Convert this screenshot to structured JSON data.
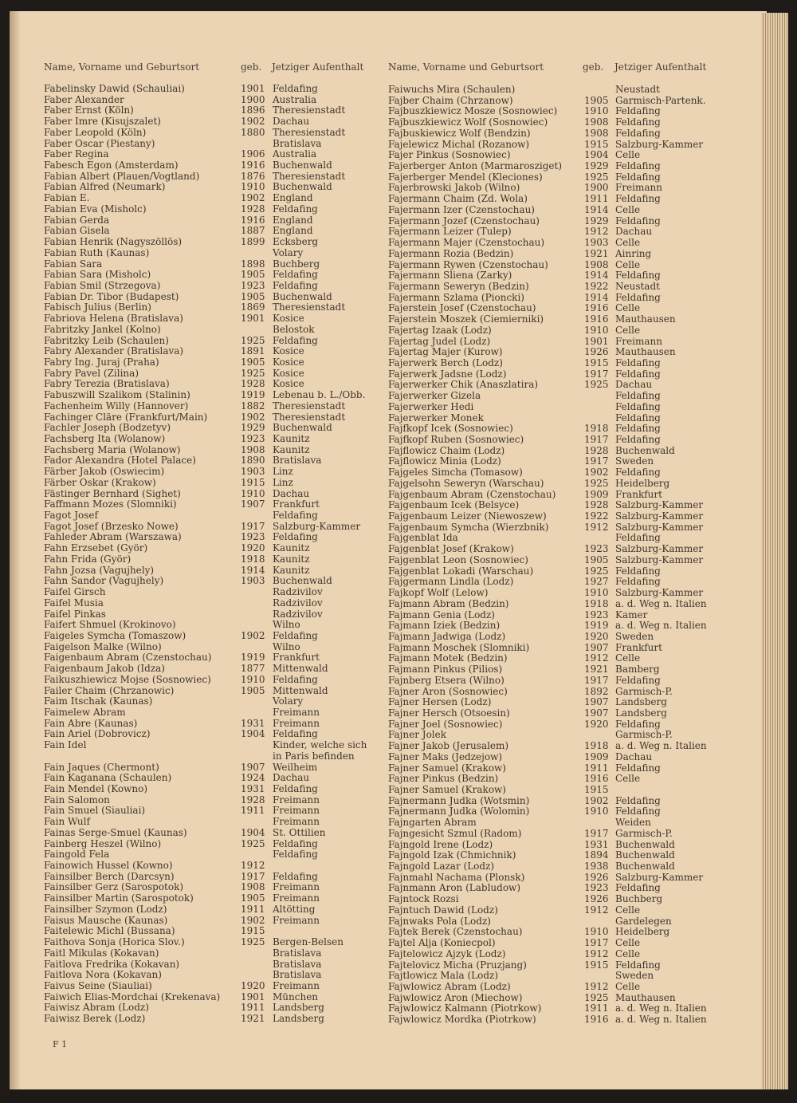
{
  "headers": {
    "name": "Name, Vorname und Geburtsort",
    "born": "geb.",
    "place": "Jetziger Aufenthalt"
  },
  "footer": "F 1",
  "left": [
    [
      "Fabelinsky Dawid (Schauliai)",
      "1901",
      "Feldafing"
    ],
    [
      "Faber Alexander",
      "1900",
      "Australia"
    ],
    [
      "Faber Ernst (Köln)",
      "1896",
      "Theresienstadt"
    ],
    [
      "Faber Imre (Kisujszalet)",
      "1902",
      "Dachau"
    ],
    [
      "Faber Leopold (Köln)",
      "1880",
      "Theresienstadt"
    ],
    [
      "Faber Oscar (Piestany)",
      "",
      "Bratislava"
    ],
    [
      "Faber Regina",
      "1906",
      "Australia"
    ],
    [
      "Fabesch Egon (Amsterdam)",
      "1916",
      "Buchenwald"
    ],
    [
      "Fabian Albert (Plauen/Vogtland)",
      "1876",
      "Theresienstadt"
    ],
    [
      "Fabian Alfred (Neumark)",
      "1910",
      "Buchenwald"
    ],
    [
      "Fabian E.",
      "1902",
      "England"
    ],
    [
      "Fabian Eva (Misholc)",
      "1928",
      "Feldafing"
    ],
    [
      "Fabian Gerda",
      "1916",
      "England"
    ],
    [
      "Fabian Gisela",
      "1887",
      "England"
    ],
    [
      "Fabian Henrik (Nagyszöllös)",
      "1899",
      "Ecksberg"
    ],
    [
      "Fabian Ruth (Kaunas)",
      "",
      "Volary"
    ],
    [
      "Fabian Sara",
      "1898",
      "Buchberg"
    ],
    [
      "Fabian Sara (Misholc)",
      "1905",
      "Feldafing"
    ],
    [
      "Fabian Smil (Strzegova)",
      "1923",
      "Feldafing"
    ],
    [
      "Fabian Dr. Tibor (Budapest)",
      "1905",
      "Buchenwald"
    ],
    [
      "Fabisch Julius (Berlin)",
      "1869",
      "Theresienstadt"
    ],
    [
      "Fabriova Helena (Bratislava)",
      "1901",
      "Kosice"
    ],
    [
      "Fabritzky Jankel (Kolno)",
      "",
      "Belostok"
    ],
    [
      "Fabritzky Leib (Schaulen)",
      "1925",
      "Feldafing"
    ],
    [
      "Fabry Alexander (Bratislava)",
      "1891",
      "Kosice"
    ],
    [
      "Fabry Ing. Juraj (Praha)",
      "1905",
      "Kosice"
    ],
    [
      "Fabry Pavel (Zilina)",
      "1925",
      "Kosice"
    ],
    [
      "Fabry Terezia (Bratislava)",
      "1928",
      "Kosice"
    ],
    [
      "Fabuszwill Szalikom (Stalinin)",
      "1919",
      "Lebenau b. L./Obb."
    ],
    [
      "Fachenheim Willy (Hannover)",
      "1882",
      "Theresienstadt"
    ],
    [
      "Fachinger Cläre (Frankfurt/Main)",
      "1902",
      "Theresienstadt"
    ],
    [
      "Fachler Joseph (Bodzetyv)",
      "1929",
      "Buchenwald"
    ],
    [
      "Fachsberg Ita (Wolanow)",
      "1923",
      "Kaunitz"
    ],
    [
      "Fachsberg Maria (Wolanow)",
      "1908",
      "Kaunitz"
    ],
    [
      "Fador Alexandra (Hotel Palace)",
      "1890",
      "Bratislava"
    ],
    [
      "Färber Jakob (Oswiecim)",
      "1903",
      "Linz"
    ],
    [
      "Färber Oskar (Krakow)",
      "1915",
      "Linz"
    ],
    [
      "Fästinger Bernhard (Sighet)",
      "1910",
      "Dachau"
    ],
    [
      "Faffmann Mozes (Slomniki)",
      "1907",
      "Frankfurt"
    ],
    [
      "Fagot Josef",
      "",
      "Feldafing"
    ],
    [
      "Fagot Josef (Brzesko Nowe)",
      "1917",
      "Salzburg-Kammer"
    ],
    [
      "Fahleder Abram (Warszawa)",
      "1923",
      "Feldafing"
    ],
    [
      "Fahn Erzsebet (Györ)",
      "1920",
      "Kaunitz"
    ],
    [
      "Fahn Frida (Györ)",
      "1918",
      "Kaunitz"
    ],
    [
      "Fahn Jozsa (Vagujhely)",
      "1914",
      "Kaunitz"
    ],
    [
      "Fahn Sandor (Vagujhely)",
      "1903",
      "Buchenwald"
    ],
    [
      "Faifel Girsch",
      "",
      "Radzivilov"
    ],
    [
      "Faifel Musia",
      "",
      "Radzivilov"
    ],
    [
      "Faifel Pinkas",
      "",
      "Radzivilov"
    ],
    [
      "Faifert Shmuel (Krokinovo)",
      "",
      "Wilno"
    ],
    [
      "Faigeles Symcha (Tomaszow)",
      "1902",
      "Feldafing"
    ],
    [
      "Faigelson Malke (Wilno)",
      "",
      "Wilno"
    ],
    [
      "Faigenbaum Abram (Czenstochau)",
      "1919",
      "Frankfurt"
    ],
    [
      "Faigenbaum Jakob (Idza)",
      "1877",
      "Mittenwald"
    ],
    [
      "Faikuszhiewicz Mojse (Sosnowiec)",
      "1910",
      "Feldafing"
    ],
    [
      "Failer Chaim (Chrzanowic)",
      "1905",
      "Mittenwald"
    ],
    [
      "Faim Itschak (Kaunas)",
      "",
      "Volary"
    ],
    [
      "Faimelew Abram",
      "",
      "Freimann"
    ],
    [
      "Fain Abre (Kaunas)",
      "1931",
      "Freimann"
    ],
    [
      "Fain Ariel (Dobrovicz)",
      "1904",
      "Feldafing"
    ],
    [
      "Fain Idel",
      "",
      "Kinder, welche sich"
    ],
    [
      "",
      "",
      "in Paris befinden"
    ],
    [
      "Fain Jaques (Chermont)",
      "1907",
      "Weilheim"
    ],
    [
      "Fain Kaganana (Schaulen)",
      "1924",
      "Dachau"
    ],
    [
      "Fain Mendel (Kowno)",
      "1931",
      "Feldafing"
    ],
    [
      "Fain Salomon",
      "1928",
      "Freimann"
    ],
    [
      "Fain Smuel (Siauliai)",
      "1911",
      "Freimann"
    ],
    [
      "Fain Wulf",
      "",
      "Freimann"
    ],
    [
      "Fainas Serge-Smuel (Kaunas)",
      "1904",
      "St. Ottilien"
    ],
    [
      "Fainberg Heszel (Wilno)",
      "1925",
      "Feldafing"
    ],
    [
      "Faingold Fela",
      "",
      "Feldafing"
    ],
    [
      "Fainowich Hussel (Kowno)",
      "1912",
      ""
    ],
    [
      "Fainsilber Berch (Darcsyn)",
      "1917",
      "Feldafing"
    ],
    [
      "Fainsilber Gerz (Sarospotok)",
      "1908",
      "Freimann"
    ],
    [
      "Fainsilber Martin (Sarospotok)",
      "1905",
      "Freimann"
    ],
    [
      "Fainsilber Szymon (Lodz)",
      "1911",
      "Altötting"
    ],
    [
      "Faisus Mausche (Kaunas)",
      "1902",
      "Freimann"
    ],
    [
      "Faitelewic Michl (Bussana)",
      "1915",
      ""
    ],
    [
      "Faithova Sonja (Horica Slov.)",
      "1925",
      "Bergen-Belsen"
    ],
    [
      "Faitl Mikulas (Kokavan)",
      "",
      "Bratislava"
    ],
    [
      "Faitlova Fredrika (Kokavan)",
      "",
      "Bratislava"
    ],
    [
      "Faitlova Nora (Kokavan)",
      "",
      "Bratislava"
    ],
    [
      "Faivus Seine (Siauliai)",
      "1920",
      "Freimann"
    ],
    [
      "Faiwich Elias-Mordchai (Krekenava)",
      "1901",
      "München"
    ],
    [
      "Faiwisz Abram (Lodz)",
      "1911",
      "Landsberg"
    ],
    [
      "Faiwisz Berek (Lodz)",
      "1921",
      "Landsberg"
    ]
  ],
  "right": [
    [
      "Faiwuchs Mira (Schaulen)",
      "",
      "Neustadt"
    ],
    [
      "Fajber Chaim (Chrzanow)",
      "1905",
      "Garmisch-Partenk."
    ],
    [
      "Fajbuszkiewicz Mosze (Sosnowiec)",
      "1910",
      "Feldafing"
    ],
    [
      "Fajbuszkiewicz Wolf (Sosnowiec)",
      "1908",
      "Feldafing"
    ],
    [
      "Fajbuskiewicz Wolf (Bendzin)",
      "1908",
      "Feldafing"
    ],
    [
      "Fajelewicz Michal (Rozanow)",
      "1915",
      "Salzburg-Kammer"
    ],
    [
      "Fajer Pinkus (Sosnowiec)",
      "1904",
      "Celle"
    ],
    [
      "Fajerberger Anton (Marmarosziget)",
      "1929",
      "Feldafing"
    ],
    [
      "Fajerberger Mendel (Kleciones)",
      "1925",
      "Feldafing"
    ],
    [
      "Fajerbrowski Jakob (Wilno)",
      "1900",
      "Freimann"
    ],
    [
      "Fajermann Chaim (Zd. Wola)",
      "1911",
      "Feldafing"
    ],
    [
      "Fajermann Izer (Czenstochau)",
      "1914",
      "Celle"
    ],
    [
      "Fajermann Jozef (Czenstochau)",
      "1929",
      "Feldafing"
    ],
    [
      "Fajermann Leizer (Tulep)",
      "1912",
      "Dachau"
    ],
    [
      "Fajermann Majer (Czenstochau)",
      "1903",
      "Celle"
    ],
    [
      "Fajermann Rozia (Bedzin)",
      "1921",
      "Ainring"
    ],
    [
      "Fajermann Rywen (Czenstochau)",
      "1908",
      "Celle"
    ],
    [
      "Fajermann Sliena (Zarky)",
      "1914",
      "Feldafing"
    ],
    [
      "Fajermann Seweryn (Bedzin)",
      "1922",
      "Neustadt"
    ],
    [
      "Fajermann Szlama (Pioncki)",
      "1914",
      "Feldafing"
    ],
    [
      "Fajerstein Josef (Czenstochau)",
      "1916",
      "Celle"
    ],
    [
      "Fajerstein Moszek (Ciemierniki)",
      "1916",
      "Mauthausen"
    ],
    [
      "Fajertag Izaak (Lodz)",
      "1910",
      "Celle"
    ],
    [
      "Fajertag Judel (Lodz)",
      "1901",
      "Freimann"
    ],
    [
      "Fajertag Majer (Kurow)",
      "1926",
      "Mauthausen"
    ],
    [
      "Fajerwerk Berch (Lodz)",
      "1915",
      "Feldafing"
    ],
    [
      "Fajerwerk Jadsne (Lodz)",
      "1917",
      "Feldafing"
    ],
    [
      "Fajerwerker Chik (Anaszlatira)",
      "1925",
      "Dachau"
    ],
    [
      "Fajerwerker Gizela",
      "",
      "Feldafing"
    ],
    [
      "Fajerwerker Hedi",
      "",
      "Feldafing"
    ],
    [
      "Fajerwerker Monek",
      "",
      "Feldafing"
    ],
    [
      "Fajfkopf Icek (Sosnowiec)",
      "1918",
      "Feldafing"
    ],
    [
      "Fajfkopf Ruben (Sosnowiec)",
      "1917",
      "Feldafing"
    ],
    [
      "Fajflowicz Chaim (Lodz)",
      "1928",
      "Buchenwald"
    ],
    [
      "Fajflowicz Minia (Lodz)",
      "1917",
      "Sweden"
    ],
    [
      "Fajgeles Simcha (Tomasow)",
      "1902",
      "Feldafing"
    ],
    [
      "Fajgelsohn Seweryn (Warschau)",
      "1925",
      "Heidelberg"
    ],
    [
      "Fajgenbaum Abram (Czenstochau)",
      "1909",
      "Frankfurt"
    ],
    [
      "Fajgenbaum Icek (Belsyce)",
      "1928",
      "Salzburg-Kammer"
    ],
    [
      "Fajgenbaum Leizer (Niewoszew)",
      "1922",
      "Salzburg-Kammer"
    ],
    [
      "Fajgenbaum Symcha (Wierzbnik)",
      "1912",
      "Salzburg-Kammer"
    ],
    [
      "Fajgenblat Ida",
      "",
      "Feldafing"
    ],
    [
      "Fajgenblat Josef (Krakow)",
      "1923",
      "Salzburg-Kammer"
    ],
    [
      "Fajgenblat Leon (Sosnowiec)",
      "1905",
      "Salzburg-Kammer"
    ],
    [
      "Fajgenblat Lokadi (Warschau)",
      "1925",
      "Feldafing"
    ],
    [
      "Fajgermann Lindla (Lodz)",
      "1927",
      "Feldafing"
    ],
    [
      "Fajkopf Wolf (Lelow)",
      "1910",
      "Salzburg-Kammer"
    ],
    [
      "Fajmann Abram (Bedzin)",
      "1918",
      "a. d. Weg n. Italien"
    ],
    [
      "Fajmann Genia (Lodz)",
      "1923",
      "Kamer"
    ],
    [
      "Fajmann Iziek (Bedzin)",
      "1919",
      "a. d. Weg n. Italien"
    ],
    [
      "Fajmann Jadwiga (Lodz)",
      "1920",
      "Sweden"
    ],
    [
      "Fajmann Moschek (Slomniki)",
      "1907",
      "Frankfurt"
    ],
    [
      "Fajmann Motek (Bedzin)",
      "1912",
      "Celle"
    ],
    [
      "Fajmann Pinkus (Pilios)",
      "1921",
      "Bamberg"
    ],
    [
      "Fajnberg Etsera (Wilno)",
      "1917",
      "Feldafing"
    ],
    [
      "Fajner Aron (Sosnowiec)",
      "1892",
      "Garmisch-P."
    ],
    [
      "Fajner Hersen (Lodz)",
      "1907",
      "Landsberg"
    ],
    [
      "Fajner Hersch (Otsoesin)",
      "1907",
      "Landsberg"
    ],
    [
      "Fajner Joel (Sosnowiec)",
      "1920",
      "Feldafing"
    ],
    [
      "Fajner Jolek",
      "",
      "Garmisch-P."
    ],
    [
      "Fajner Jakob (Jerusalem)",
      "1918",
      "a. d. Weg n. Italien"
    ],
    [
      "Fajner Maks (Jedzejow)",
      "1909",
      "Dachau"
    ],
    [
      "Fajner Samuel (Krakow)",
      "1911",
      "Feldafing"
    ],
    [
      "Fajner Pinkus (Bedzin)",
      "1916",
      "Celle"
    ],
    [
      "Fajner Samuel (Krakow)",
      "1915",
      ""
    ],
    [
      "Fajnermann Judka (Wotsmin)",
      "1902",
      "Feldafing"
    ],
    [
      "Fajnermann Judka (Wolomin)",
      "1910",
      "Feldafing"
    ],
    [
      "Fajngarten Abram",
      "",
      "Weiden"
    ],
    [
      "Fajngesicht Szmul (Radom)",
      "1917",
      "Garmisch-P."
    ],
    [
      "Fajngold Irene (Lodz)",
      "1931",
      "Buchenwald"
    ],
    [
      "Fajngold Izak (Chmichnik)",
      "1894",
      "Buchenwald"
    ],
    [
      "Fajngold Lazar (Lodz)",
      "1938",
      "Buchenwald"
    ],
    [
      "Fajnmahl Nachama (Plonsk)",
      "1926",
      "Salzburg-Kammer"
    ],
    [
      "Fajnmann Aron (Labludow)",
      "1923",
      "Feldafing"
    ],
    [
      "Fajntock Rozsi",
      "1926",
      "Buchberg"
    ],
    [
      "Fajntuch Dawid (Lodz)",
      "1912",
      "Celle"
    ],
    [
      "Fajnwaks Pola (Lodz)",
      "",
      "Gardelegen"
    ],
    [
      "Fajtek Berek (Czenstochau)",
      "1910",
      "Heidelberg"
    ],
    [
      "Fajtel Alja (Koniecpol)",
      "1917",
      "Celle"
    ],
    [
      "Fajtelowicz Ajzyk (Lodz)",
      "1912",
      "Celle"
    ],
    [
      "Fajtelovicz Micha (Pruzjang)",
      "1915",
      "Feldafing"
    ],
    [
      "Fajtlowicz Mala (Lodz)",
      "",
      "Sweden"
    ],
    [
      "Fajwlowicz Abram (Lodz)",
      "1912",
      "Celle"
    ],
    [
      "Fajwlowicz Aron (Miechow)",
      "1925",
      "Mauthausen"
    ],
    [
      "Fajwlowicz Kalmann (Piotrkow)",
      "1911",
      "a. d. Weg n. Italien"
    ],
    [
      "Fajwlowicz Mordka (Piotrkow)",
      "1916",
      "a. d. Weg n. Italien"
    ]
  ]
}
